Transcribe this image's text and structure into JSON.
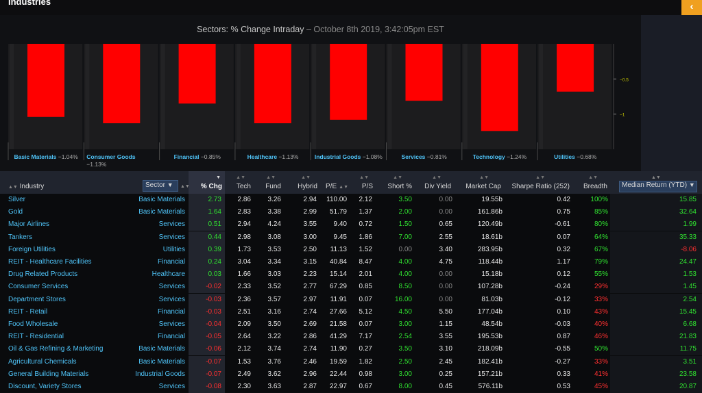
{
  "window": {
    "title": "Industries",
    "collapse_icon": "chevron-left-icon"
  },
  "chart_data": {
    "type": "bar",
    "title": "Sectors: % Change Intraday",
    "subtitle": "October 8th 2019, 3:42:05pm EST",
    "categories": [
      "Basic Materials",
      "Consumer Goods",
      "Financial",
      "Healthcare",
      "Industrial Goods",
      "Services",
      "Technology",
      "Utilities"
    ],
    "category_labels": [
      "Basic Materials",
      "Consumer Goods",
      "Financial",
      "Healthcare",
      "Industrial Goods",
      "Services",
      "Technology",
      "Utilities"
    ],
    "value_labels": [
      "-1.04%",
      "-1.13%",
      "-0.85%",
      "-1.13%",
      "-1.08%",
      "-0.81%",
      "-1.24%",
      "-0.68%"
    ],
    "values": [
      -1.04,
      -1.13,
      -0.85,
      -1.13,
      -1.08,
      -0.81,
      -1.24,
      -0.68
    ],
    "ylim": [
      -1.5,
      0
    ],
    "yticks": [
      -0.5,
      -1
    ],
    "ytick_labels": [
      "-0.5",
      "-1"
    ],
    "bar_color": "#ff0000",
    "axis_label_color": "#4fc3f7",
    "tick_color": "#c8c800",
    "grid": false,
    "legend": "none"
  },
  "grid": {
    "headers": {
      "industry": "Industry",
      "sector": "Sector",
      "pct_chg": "% Chg",
      "tech": "Tech",
      "fund": "Fund",
      "hybrid": "Hybrid",
      "pe": "P/E",
      "ps": "P/S",
      "short": "Short %",
      "div": "Div Yield",
      "mcap": "Market Cap",
      "sharpe": "Sharpe Ratio (252)",
      "breadth": "Breadth",
      "median": "Median Return (YTD)"
    },
    "rows": [
      {
        "industry": "Silver",
        "sector": "Basic Materials",
        "pct_chg": "2.73",
        "tech": "2.86",
        "fund": "3.26",
        "hybrid": "2.94",
        "pe": "110.00",
        "ps": "2.12",
        "short": "3.50",
        "div": "0.00",
        "mcap": "19.55b",
        "sharpe": "0.42",
        "breadth": "100%",
        "median": "15.85"
      },
      {
        "industry": "Gold",
        "sector": "Basic Materials",
        "pct_chg": "1.64",
        "tech": "2.83",
        "fund": "3.38",
        "hybrid": "2.99",
        "pe": "51.79",
        "ps": "1.37",
        "short": "2.00",
        "div": "0.00",
        "mcap": "161.86b",
        "sharpe": "0.75",
        "breadth": "85%",
        "median": "32.64"
      },
      {
        "industry": "Major Airlines",
        "sector": "Services",
        "pct_chg": "0.51",
        "tech": "2.94",
        "fund": "4.24",
        "hybrid": "3.55",
        "pe": "9.40",
        "ps": "0.72",
        "short": "1.50",
        "div": "0.65",
        "mcap": "120.49b",
        "sharpe": "-0.61",
        "breadth": "80%",
        "median": "1.99"
      },
      {
        "industry": "Tankers",
        "sector": "Services",
        "pct_chg": "0.44",
        "tech": "2.98",
        "fund": "3.08",
        "hybrid": "3.00",
        "pe": "9.45",
        "ps": "1.86",
        "short": "7.00",
        "div": "2.55",
        "mcap": "18.61b",
        "sharpe": "0.07",
        "breadth": "64%",
        "median": "35.33"
      },
      {
        "industry": "Foreign Utilities",
        "sector": "Utilities",
        "pct_chg": "0.39",
        "tech": "1.73",
        "fund": "3.53",
        "hybrid": "2.50",
        "pe": "11.13",
        "ps": "1.52",
        "short": "0.00",
        "div": "3.40",
        "mcap": "283.95b",
        "sharpe": "0.32",
        "breadth": "67%",
        "median": "-8.06"
      },
      {
        "industry": "REIT - Healthcare Facilities",
        "sector": "Financial",
        "pct_chg": "0.24",
        "tech": "3.04",
        "fund": "3.34",
        "hybrid": "3.15",
        "pe": "40.84",
        "ps": "8.47",
        "short": "4.00",
        "div": "4.75",
        "mcap": "118.44b",
        "sharpe": "1.17",
        "breadth": "79%",
        "median": "24.47"
      },
      {
        "industry": "Drug Related Products",
        "sector": "Healthcare",
        "pct_chg": "0.03",
        "tech": "1.66",
        "fund": "3.03",
        "hybrid": "2.23",
        "pe": "15.14",
        "ps": "2.01",
        "short": "4.00",
        "div": "0.00",
        "mcap": "15.18b",
        "sharpe": "0.12",
        "breadth": "55%",
        "median": "1.53"
      },
      {
        "industry": "Consumer Services",
        "sector": "Services",
        "pct_chg": "-0.02",
        "tech": "2.33",
        "fund": "3.52",
        "hybrid": "2.77",
        "pe": "67.29",
        "ps": "0.85",
        "short": "8.50",
        "div": "0.00",
        "mcap": "107.28b",
        "sharpe": "-0.24",
        "breadth": "29%",
        "median": "1.45"
      },
      {
        "industry": "Department Stores",
        "sector": "Services",
        "pct_chg": "-0.03",
        "tech": "2.36",
        "fund": "3.57",
        "hybrid": "2.97",
        "pe": "11.91",
        "ps": "0.07",
        "short": "16.00",
        "div": "0.00",
        "mcap": "81.03b",
        "sharpe": "-0.12",
        "breadth": "33%",
        "median": "2.54"
      },
      {
        "industry": "REIT - Retail",
        "sector": "Financial",
        "pct_chg": "-0.03",
        "tech": "2.51",
        "fund": "3.16",
        "hybrid": "2.74",
        "pe": "27.66",
        "ps": "5.12",
        "short": "4.50",
        "div": "5.50",
        "mcap": "177.04b",
        "sharpe": "0.10",
        "breadth": "43%",
        "median": "15.45"
      },
      {
        "industry": "Food Wholesale",
        "sector": "Services",
        "pct_chg": "-0.04",
        "tech": "2.09",
        "fund": "3.50",
        "hybrid": "2.69",
        "pe": "21.58",
        "ps": "0.07",
        "short": "3.00",
        "div": "1.15",
        "mcap": "48.54b",
        "sharpe": "-0.03",
        "breadth": "40%",
        "median": "6.68"
      },
      {
        "industry": "REIT - Residential",
        "sector": "Financial",
        "pct_chg": "-0.05",
        "tech": "2.64",
        "fund": "3.22",
        "hybrid": "2.86",
        "pe": "41.29",
        "ps": "7.17",
        "short": "2.54",
        "div": "3.55",
        "mcap": "195.53b",
        "sharpe": "0.87",
        "breadth": "46%",
        "median": "21.83"
      },
      {
        "industry": "Oil & Gas Refining & Marketing",
        "sector": "Basic Materials",
        "pct_chg": "-0.06",
        "tech": "2.12",
        "fund": "3.74",
        "hybrid": "2.74",
        "pe": "11.90",
        "ps": "0.27",
        "short": "3.50",
        "div": "3.10",
        "mcap": "218.09b",
        "sharpe": "-0.55",
        "breadth": "50%",
        "median": "11.75"
      },
      {
        "industry": "Agricultural Chemicals",
        "sector": "Basic Materials",
        "pct_chg": "-0.07",
        "tech": "1.53",
        "fund": "3.76",
        "hybrid": "2.46",
        "pe": "19.59",
        "ps": "1.82",
        "short": "2.50",
        "div": "2.45",
        "mcap": "182.41b",
        "sharpe": "-0.27",
        "breadth": "33%",
        "median": "3.51"
      },
      {
        "industry": "General Building Materials",
        "sector": "Industrial Goods",
        "pct_chg": "-0.07",
        "tech": "2.49",
        "fund": "3.62",
        "hybrid": "2.96",
        "pe": "22.44",
        "ps": "0.98",
        "short": "3.00",
        "div": "0.25",
        "mcap": "157.21b",
        "sharpe": "0.33",
        "breadth": "41%",
        "median": "23.58"
      },
      {
        "industry": "Discount, Variety Stores",
        "sector": "Services",
        "pct_chg": "-0.08",
        "tech": "2.30",
        "fund": "3.63",
        "hybrid": "2.87",
        "pe": "22.97",
        "ps": "0.67",
        "short": "8.00",
        "div": "0.45",
        "mcap": "576.11b",
        "sharpe": "0.53",
        "breadth": "45%",
        "median": "20.87"
      }
    ]
  },
  "colors": {
    "positive": "#30e030",
    "negative": "#ff3030",
    "link": "#4fc3f7",
    "accent": "#f0a020"
  }
}
